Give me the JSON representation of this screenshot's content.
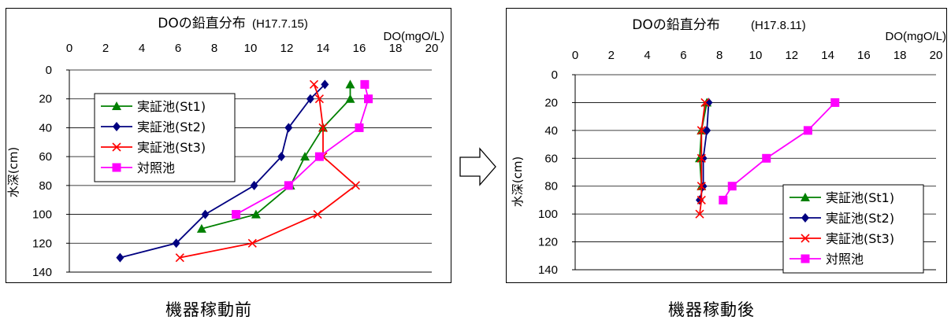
{
  "chart_data": [
    {
      "type": "line",
      "title": "DOの鉛直分布",
      "date_label": "(H17.7.15)",
      "unit_label": "DO(mgO/L)",
      "ylabel": "水深(cm)",
      "xlim": [
        0,
        20
      ],
      "ylim": [
        0,
        140
      ],
      "x_ticks": [
        "0",
        "2",
        "4",
        "6",
        "8",
        "10",
        "12",
        "14",
        "16",
        "18",
        "20"
      ],
      "y_ticks": [
        "0",
        "20",
        "40",
        "60",
        "80",
        "100",
        "120",
        "140"
      ],
      "x_axis_position": "top",
      "y_inverted": true,
      "grid": "horizontal",
      "legend_position": "upper-left",
      "caption": "機器稼動前",
      "series": [
        {
          "name": "実証池(St1)",
          "color": "#008000",
          "marker": "triangle",
          "points": [
            [
              15.5,
              10
            ],
            [
              15.5,
              20
            ],
            [
              14,
              40
            ],
            [
              13,
              60
            ],
            [
              12.2,
              80
            ],
            [
              10.3,
              100
            ],
            [
              7.3,
              110
            ]
          ]
        },
        {
          "name": "実証池(St2)",
          "color": "#000080",
          "marker": "diamond",
          "points": [
            [
              14.1,
              10
            ],
            [
              13.3,
              20
            ],
            [
              12.1,
              40
            ],
            [
              11.7,
              60
            ],
            [
              10.2,
              80
            ],
            [
              7.5,
              100
            ],
            [
              5.9,
              120
            ],
            [
              2.8,
              130
            ]
          ]
        },
        {
          "name": "実証池(St3)",
          "color": "#ff0000",
          "marker": "x",
          "points": [
            [
              13.5,
              10
            ],
            [
              13.8,
              20
            ],
            [
              14,
              40
            ],
            [
              14,
              60
            ],
            [
              15.8,
              80
            ],
            [
              13.7,
              100
            ],
            [
              10.1,
              120
            ],
            [
              6.1,
              130
            ]
          ]
        },
        {
          "name": "対照池",
          "color": "#ff00ff",
          "marker": "square",
          "points": [
            [
              16.3,
              10
            ],
            [
              16.5,
              20
            ],
            [
              16,
              40
            ],
            [
              13.8,
              60
            ],
            [
              12.1,
              80
            ],
            [
              9.2,
              100
            ]
          ]
        }
      ]
    },
    {
      "type": "line",
      "title": "DOの鉛直分布",
      "date_label": "(H17.8.11)",
      "unit_label": "DO(mgO/L)",
      "ylabel": "水深(cm)",
      "xlim": [
        0,
        20
      ],
      "ylim": [
        0,
        140
      ],
      "x_ticks": [
        "0",
        "2",
        "4",
        "6",
        "8",
        "10",
        "12",
        "14",
        "16",
        "18",
        "20"
      ],
      "y_ticks": [
        "0",
        "20",
        "40",
        "60",
        "80",
        "100",
        "120",
        "140"
      ],
      "x_axis_position": "top",
      "y_inverted": true,
      "grid": "horizontal",
      "legend_position": "lower-right",
      "caption": "機器稼動後",
      "series": [
        {
          "name": "実証池(St1)",
          "color": "#008000",
          "marker": "triangle",
          "points": [
            [
              7.3,
              20
            ],
            [
              7,
              40
            ],
            [
              6.9,
              60
            ],
            [
              7,
              80
            ]
          ]
        },
        {
          "name": "実証池(St2)",
          "color": "#000080",
          "marker": "diamond",
          "points": [
            [
              7.4,
              20
            ],
            [
              7.3,
              40
            ],
            [
              7.1,
              60
            ],
            [
              7.1,
              80
            ],
            [
              6.9,
              90
            ]
          ]
        },
        {
          "name": "実証池(St3)",
          "color": "#ff0000",
          "marker": "x",
          "points": [
            [
              7.2,
              20
            ],
            [
              7,
              40
            ],
            [
              7,
              60
            ],
            [
              7,
              80
            ],
            [
              7,
              90
            ],
            [
              6.9,
              100
            ]
          ]
        },
        {
          "name": "対照池",
          "color": "#ff00ff",
          "marker": "square",
          "points": [
            [
              14.4,
              20
            ],
            [
              12.9,
              40
            ],
            [
              10.6,
              60
            ],
            [
              8.7,
              80
            ],
            [
              8.2,
              90
            ]
          ]
        }
      ]
    }
  ]
}
